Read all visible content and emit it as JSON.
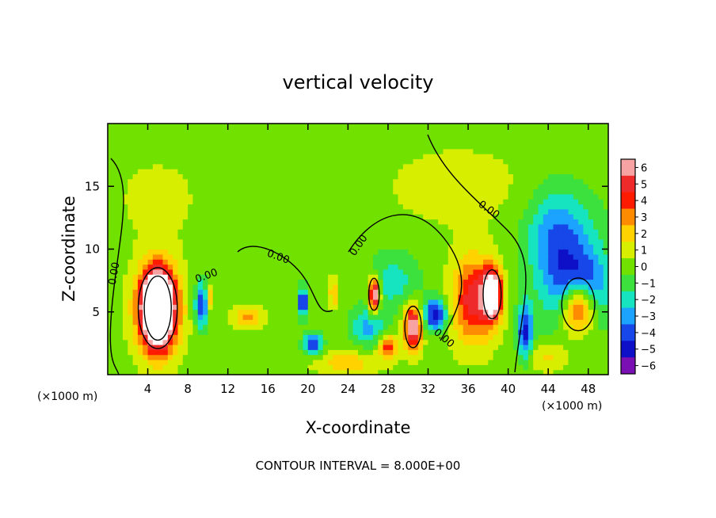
{
  "chart_data": {
    "type": "heatmap",
    "title": "vertical velocity",
    "xlabel": "X-coordinate",
    "ylabel": "Z-coordinate",
    "x_unit": "(×1000 m)",
    "x_unit_right": "(×1000 m)",
    "xlim": [
      0,
      50
    ],
    "ylim": [
      0,
      20
    ],
    "xticks": [
      4,
      8,
      12,
      16,
      20,
      24,
      28,
      32,
      36,
      40,
      44,
      48
    ],
    "yticks": [
      5,
      10,
      15
    ],
    "colorbar": {
      "ticks": [
        6,
        5,
        4,
        3,
        2,
        1,
        0,
        -1,
        -2,
        -3,
        -4,
        -5,
        -6
      ],
      "tick_labels": [
        "6",
        "5",
        "4",
        "3",
        "2",
        "1",
        "0",
        "−1",
        "−2",
        "−3",
        "−4",
        "−5",
        "−6"
      ],
      "colors": [
        "#f7a3a3",
        "#ef2a2a",
        "#ff1b00",
        "#ff8c00",
        "#ffd200",
        "#d8ee00",
        "#71e100",
        "#3ce13e",
        "#16e3c0",
        "#1ba3ff",
        "#1747e8",
        "#0e10c8",
        "#7a0fb3"
      ]
    },
    "contour_labels": [
      "0.00",
      "0.00",
      "0.00",
      "0.00",
      "0.00",
      "0.00"
    ],
    "footer": "CONTOUR INTERVAL = 8.000E+00",
    "blobs": [
      {
        "x": 5.0,
        "z": 5.3,
        "rx": 2.6,
        "rz": 4.3,
        "v": 7.0
      },
      {
        "x": 5.0,
        "z": 5.3,
        "rx": 1.8,
        "rz": 3.4,
        "v": 9.0
      },
      {
        "x": 9.4,
        "z": 5.6,
        "rx": 0.9,
        "rz": 2.4,
        "v": -4.5
      },
      {
        "x": 10.2,
        "z": 6.2,
        "rx": 0.5,
        "rz": 1.2,
        "v": 3.0
      },
      {
        "x": 14.0,
        "z": 4.6,
        "rx": 1.8,
        "rz": 1.0,
        "v": 2.5
      },
      {
        "x": 19.5,
        "z": 5.8,
        "rx": 0.6,
        "rz": 1.5,
        "v": -5.5
      },
      {
        "x": 20.5,
        "z": 2.5,
        "rx": 1.2,
        "rz": 1.1,
        "v": -5.0
      },
      {
        "x": 22.6,
        "z": 6.5,
        "rx": 0.6,
        "rz": 1.4,
        "v": 2.5
      },
      {
        "x": 26.6,
        "z": 6.4,
        "rx": 0.7,
        "rz": 1.7,
        "v": 8.0
      },
      {
        "x": 26.0,
        "z": 3.8,
        "rx": 2.2,
        "rz": 2.0,
        "v": -3.0
      },
      {
        "x": 28.0,
        "z": 2.3,
        "rx": 1.2,
        "rz": 1.2,
        "v": 4.0
      },
      {
        "x": 30.5,
        "z": 3.8,
        "rx": 1.1,
        "rz": 2.2,
        "v": 7.0
      },
      {
        "x": 32.7,
        "z": 4.8,
        "rx": 1.5,
        "rz": 1.6,
        "v": -5.5
      },
      {
        "x": 28.5,
        "z": 7.5,
        "rx": 3.5,
        "rz": 3.0,
        "v": -2.2
      },
      {
        "x": 36.5,
        "z": 6.0,
        "rx": 2.6,
        "rz": 4.2,
        "v": 5.0
      },
      {
        "x": 38.4,
        "z": 6.4,
        "rx": 1.2,
        "rz": 2.6,
        "v": 8.0
      },
      {
        "x": 41.7,
        "z": 3.4,
        "rx": 1.0,
        "rz": 2.8,
        "v": -4.8
      },
      {
        "x": 46.3,
        "z": 8.5,
        "rx": 5.0,
        "rz": 6.5,
        "v": -3.0
      },
      {
        "x": 47.2,
        "z": 6.5,
        "rx": 3.0,
        "rz": 3.2,
        "v": -5.2
      },
      {
        "x": 47.0,
        "z": 5.6,
        "rx": 2.2,
        "rz": 2.8,
        "v": 9.0
      },
      {
        "x": 44.6,
        "z": 11.5,
        "rx": 3.5,
        "rz": 4.5,
        "v": -2.2
      },
      {
        "x": 35.0,
        "z": 15.0,
        "rx": 9.0,
        "rz": 4.0,
        "v": 0.8
      },
      {
        "x": 5.0,
        "z": 14.0,
        "rx": 5.0,
        "rz": 4.0,
        "v": 0.7
      },
      {
        "x": 24.0,
        "z": 1.0,
        "rx": 4.0,
        "rz": 1.2,
        "v": 2.0
      },
      {
        "x": 44.0,
        "z": 1.5,
        "rx": 2.5,
        "rz": 1.5,
        "v": 1.8
      }
    ]
  }
}
